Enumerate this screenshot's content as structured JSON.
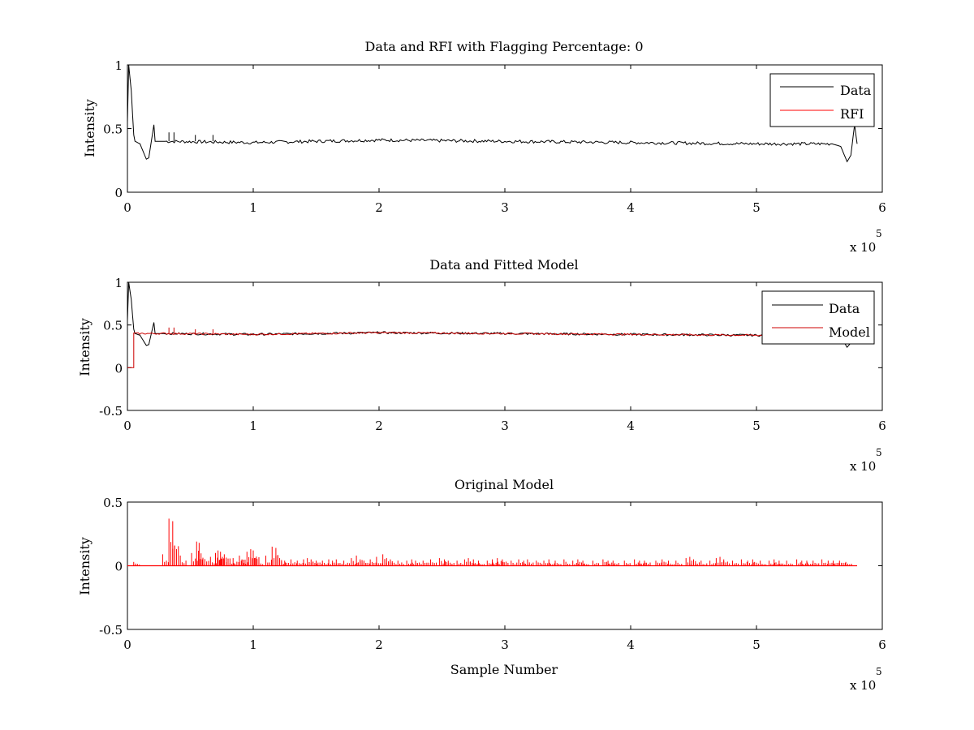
{
  "figure": {
    "background": "#ffffff"
  },
  "colors": {
    "data": "#000000",
    "rfi": "#ff0000",
    "model": "#cc0000",
    "axes": "#000000"
  },
  "chart_data": [
    {
      "type": "line",
      "title": "Data and RFI with Flagging Percentage: 0",
      "xlabel": "",
      "ylabel": "Intensity",
      "xlim": [
        0,
        600000
      ],
      "ylim": [
        0,
        1
      ],
      "xticks": [
        0,
        1,
        2,
        3,
        4,
        5,
        6
      ],
      "yticks": [
        "0",
        "0.5",
        "1"
      ],
      "ytick_values": [
        0,
        0.5,
        1
      ],
      "x_multiplier": "x 10",
      "x_multiplier_exp": "5",
      "legend": {
        "placement": "top-right",
        "entries": [
          "Data",
          "RFI"
        ]
      },
      "series": [
        {
          "name": "Data",
          "color": "#000000",
          "x": [
            0,
            1000,
            3000,
            5000,
            6000,
            10000,
            15000,
            17000,
            21000,
            22000,
            30000,
            100000,
            200000,
            300000,
            400000,
            500000,
            560000,
            567000,
            572000,
            575000,
            578000,
            580000
          ],
          "y": [
            0.55,
            1.0,
            0.8,
            0.45,
            0.4,
            0.38,
            0.26,
            0.27,
            0.53,
            0.4,
            0.4,
            0.39,
            0.41,
            0.4,
            0.39,
            0.38,
            0.38,
            0.36,
            0.24,
            0.29,
            0.53,
            0.38
          ]
        },
        {
          "name": "RFI",
          "color": "#ff0000",
          "x": [],
          "y": []
        }
      ]
    },
    {
      "type": "line",
      "title": "Data and Fitted Model",
      "xlabel": "",
      "ylabel": "Intensity",
      "xlim": [
        0,
        600000
      ],
      "ylim": [
        -0.5,
        1
      ],
      "xticks": [
        0,
        1,
        2,
        3,
        4,
        5,
        6
      ],
      "yticks": [
        "-0.5",
        "0",
        "0.5",
        "1"
      ],
      "ytick_values": [
        -0.5,
        0,
        0.5,
        1
      ],
      "x_multiplier": "x 10",
      "x_multiplier_exp": "5",
      "legend": {
        "placement": "top-right",
        "entries": [
          "Data",
          "Model"
        ]
      },
      "series": [
        {
          "name": "Data",
          "color": "#000000",
          "x": [
            0,
            1000,
            3000,
            5000,
            6000,
            10000,
            15000,
            17000,
            21000,
            22000,
            30000,
            100000,
            200000,
            300000,
            400000,
            500000,
            560000,
            567000,
            572000,
            575000,
            578000,
            580000
          ],
          "y": [
            0.55,
            1.0,
            0.8,
            0.45,
            0.4,
            0.38,
            0.26,
            0.27,
            0.53,
            0.4,
            0.4,
            0.39,
            0.41,
            0.4,
            0.39,
            0.38,
            0.38,
            0.36,
            0.24,
            0.29,
            0.53,
            0.38
          ]
        },
        {
          "name": "Model",
          "color": "#cc0000",
          "x": [
            0,
            5000,
            5000,
            30000,
            100000,
            200000,
            300000,
            400000,
            500000,
            580000
          ],
          "y": [
            0,
            0,
            0.4,
            0.4,
            0.39,
            0.41,
            0.4,
            0.39,
            0.38,
            0.38
          ]
        }
      ]
    },
    {
      "type": "line",
      "title": "Original Model",
      "xlabel": "Sample Number",
      "ylabel": "Intensity",
      "xlim": [
        0,
        600000
      ],
      "ylim": [
        -0.5,
        0.5
      ],
      "xticks": [
        0,
        1,
        2,
        3,
        4,
        5,
        6
      ],
      "yticks": [
        "-0.5",
        "0",
        "0.5"
      ],
      "ytick_values": [
        -0.5,
        0,
        0.5
      ],
      "x_multiplier": "x 10",
      "x_multiplier_exp": "5",
      "series": [
        {
          "color": "#ff0000",
          "baseline": 0,
          "spike_x": [
            5000,
            28000,
            33000,
            36000,
            42000,
            51000,
            55000,
            57000,
            60000,
            66000,
            70000,
            72000,
            74000,
            77000,
            80000,
            84000,
            89000,
            91000,
            95000,
            98000,
            100000,
            103000,
            110000,
            115000,
            118000,
            121000,
            125000,
            130000,
            135000,
            140000,
            143000,
            146000,
            150000,
            155000,
            160000,
            163000,
            166000,
            172000,
            178000,
            182000,
            185000,
            188000,
            193000,
            198000,
            203000,
            206000,
            209000,
            215000,
            222000,
            226000,
            229000,
            235000,
            241000,
            248000,
            252000,
            255000,
            262000,
            268000,
            271000,
            275000,
            279000,
            286000,
            290000,
            294000,
            298000,
            305000,
            311000,
            315000,
            318000,
            325000,
            331000,
            335000,
            340000,
            347000,
            354000,
            358000,
            362000,
            370000,
            378000,
            382000,
            386000,
            395000,
            403000,
            407000,
            411000,
            420000,
            425000,
            430000,
            436000,
            444000,
            447000,
            450000,
            456000,
            463000,
            468000,
            471000,
            474000,
            481000,
            488000,
            493000,
            497000,
            503000,
            510000,
            514000,
            518000,
            524000,
            532000,
            536000,
            540000,
            545000,
            552000,
            557000,
            561000,
            566000,
            571000
          ],
          "spike_y": [
            0.03,
            0.09,
            0.37,
            0.35,
            0.08,
            0.1,
            0.19,
            0.18,
            0.06,
            0.07,
            0.1,
            0.12,
            0.11,
            0.09,
            0.05,
            0.06,
            0.08,
            0.05,
            0.11,
            0.13,
            0.12,
            0.05,
            0.08,
            0.15,
            0.14,
            0.06,
            0.04,
            0.05,
            0.04,
            0.05,
            0.06,
            0.05,
            0.04,
            0.04,
            0.05,
            0.04,
            0.05,
            0.04,
            0.06,
            0.08,
            0.05,
            0.04,
            0.05,
            0.07,
            0.09,
            0.06,
            0.05,
            0.04,
            0.04,
            0.05,
            0.04,
            0.04,
            0.05,
            0.06,
            0.05,
            0.04,
            0.04,
            0.05,
            0.06,
            0.05,
            0.04,
            0.04,
            0.05,
            0.06,
            0.05,
            0.04,
            0.05,
            0.04,
            0.05,
            0.04,
            0.04,
            0.05,
            0.04,
            0.05,
            0.04,
            0.05,
            0.04,
            0.04,
            0.05,
            0.04,
            0.04,
            0.04,
            0.05,
            0.04,
            0.04,
            0.04,
            0.05,
            0.04,
            0.04,
            0.06,
            0.07,
            0.05,
            0.04,
            0.04,
            0.06,
            0.07,
            0.05,
            0.04,
            0.05,
            0.04,
            0.05,
            0.04,
            0.04,
            0.05,
            0.04,
            0.04,
            0.05,
            0.04,
            0.04,
            0.04,
            0.05,
            0.04,
            0.04,
            0.04,
            0.03
          ]
        }
      ]
    }
  ]
}
